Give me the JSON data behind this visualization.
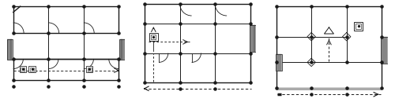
{
  "fig_bg": "#ffffff",
  "line_color": "#1a1a1a",
  "dashed_color": "#1a1a1a",
  "dot_color": "#1a1a1a",
  "lw_outer": 1.0,
  "lw_inner": 0.7,
  "lw_door": 0.6,
  "dot_size": 5
}
